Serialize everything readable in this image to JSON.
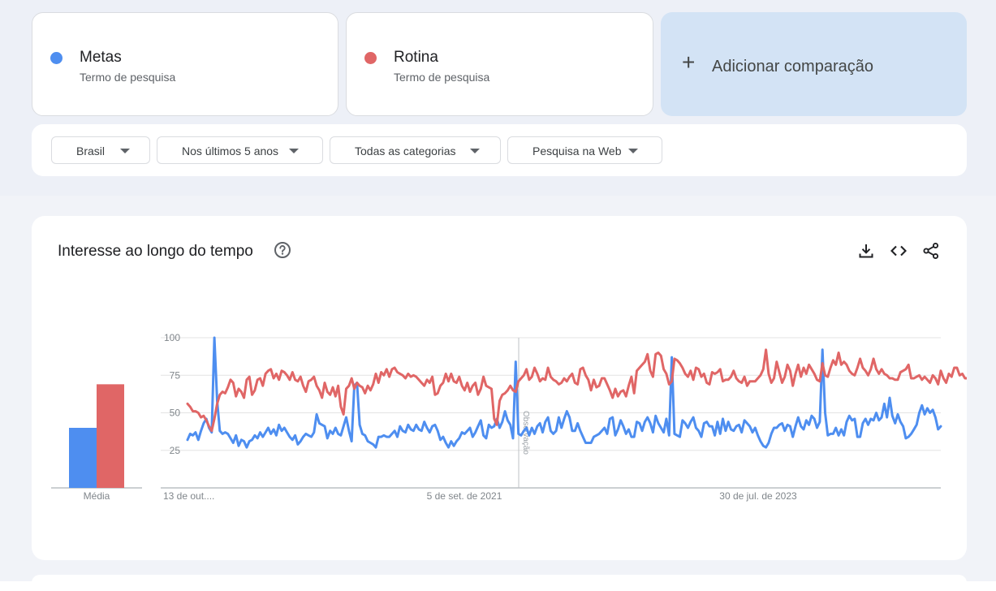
{
  "terms": [
    {
      "name": "Metas",
      "subtitle": "Termo de pesquisa",
      "color": "#4e8ef0"
    },
    {
      "name": "Rotina",
      "subtitle": "Termo de pesquisa",
      "color": "#e06666"
    }
  ],
  "add_comparison": {
    "label": "Adicionar comparação",
    "icon": "plus-icon"
  },
  "filters": [
    {
      "label": "Brasil",
      "icon": "chevron-down-icon"
    },
    {
      "label": "Nos últimos 5 anos",
      "icon": "chevron-down-icon"
    },
    {
      "label": "Todas as categorias",
      "icon": "chevron-down-icon"
    },
    {
      "label": "Pesquisa na Web",
      "icon": "chevron-down-icon"
    }
  ],
  "chart_section": {
    "title": "Interesse ao longo do tempo",
    "help_icon": "help-circle-icon",
    "tools": [
      "download-icon",
      "embed-code-icon",
      "share-icon"
    ]
  },
  "chart_data": {
    "type": "line",
    "average_bars": {
      "label": "Média",
      "values": [
        {
          "series": "Metas",
          "value": 40
        },
        {
          "series": "Rotina",
          "value": 69
        }
      ]
    },
    "y_ticks": [
      100,
      75,
      50,
      25
    ],
    "ylim": [
      0,
      100
    ],
    "x_tick_labels": [
      "13 de out....",
      "5 de set. de 2021",
      "30 de jul. de 2023"
    ],
    "annotation": "Observação",
    "grid": true,
    "series": [
      {
        "name": "Metas",
        "color": "#4e8ef0",
        "values": [
          32,
          36,
          35,
          37,
          32,
          38,
          43,
          46,
          40,
          37,
          100,
          58,
          38,
          36,
          37,
          36,
          33,
          30,
          35,
          28,
          32,
          31,
          27,
          31,
          32,
          35,
          33,
          37,
          34,
          37,
          40,
          36,
          39,
          35,
          42,
          38,
          40,
          37,
          34,
          32,
          35,
          29,
          31,
          34,
          36,
          35,
          34,
          37,
          49,
          43,
          42,
          41,
          33,
          38,
          36,
          40,
          36,
          35,
          41,
          47,
          38,
          31,
          68,
          70,
          42,
          36,
          35,
          31,
          30,
          29,
          27,
          34,
          34,
          35,
          34,
          34,
          36,
          38,
          34,
          41,
          38,
          37,
          42,
          39,
          38,
          42,
          39,
          38,
          44,
          40,
          37,
          41,
          42,
          38,
          32,
          34,
          30,
          27,
          31,
          28,
          31,
          33,
          37,
          36,
          38,
          40,
          34,
          37,
          41,
          45,
          35,
          33,
          42,
          40,
          41,
          46,
          40,
          44,
          51,
          45,
          42,
          33,
          84,
          36,
          35,
          38,
          40,
          35,
          40,
          36,
          41,
          43,
          37,
          44,
          47,
          38,
          36,
          38,
          47,
          40,
          46,
          51,
          47,
          38,
          38,
          43,
          38,
          34,
          30,
          30,
          30,
          34,
          35,
          36,
          38,
          40,
          36,
          46,
          47,
          35,
          39,
          45,
          41,
          36,
          39,
          34,
          34,
          44,
          43,
          38,
          44,
          47,
          43,
          37,
          48,
          43,
          40,
          37,
          46,
          35,
          87,
          36,
          35,
          34,
          45,
          43,
          40,
          44,
          47,
          40,
          38,
          34,
          43,
          44,
          41,
          41,
          35,
          44,
          36,
          46,
          38,
          44,
          39,
          38,
          41,
          42,
          37,
          45,
          43,
          41,
          37,
          40,
          35,
          31,
          28,
          27,
          30,
          36,
          40,
          40,
          42,
          43,
          38,
          42,
          41,
          34,
          41,
          47,
          41,
          39,
          45,
          42,
          48,
          46,
          40,
          44,
          92,
          50,
          35,
          36,
          36,
          40,
          35,
          39,
          35,
          44,
          48,
          45,
          46,
          34,
          34,
          43,
          46,
          42,
          46,
          45,
          50,
          45,
          47,
          56,
          47,
          60,
          48,
          43,
          49,
          44,
          41,
          33,
          34,
          36,
          39,
          42,
          50,
          55,
          49,
          53,
          50,
          52,
          47,
          39,
          41
        ]
      },
      {
        "name": "Rotina",
        "color": "#e06666",
        "values": [
          56,
          54,
          51,
          51,
          50,
          47,
          48,
          45,
          41,
          38,
          46,
          56,
          62,
          64,
          63,
          67,
          72,
          70,
          61,
          66,
          64,
          60,
          72,
          74,
          62,
          65,
          72,
          73,
          68,
          76,
          78,
          79,
          73,
          76,
          72,
          78,
          77,
          75,
          72,
          77,
          72,
          71,
          74,
          68,
          64,
          71,
          72,
          74,
          68,
          65,
          60,
          70,
          64,
          62,
          67,
          61,
          68,
          54,
          49,
          66,
          68,
          73,
          66,
          70,
          68,
          67,
          63,
          68,
          65,
          69,
          76,
          70,
          77,
          75,
          79,
          74,
          79,
          80,
          77,
          76,
          75,
          73,
          76,
          74,
          75,
          74,
          72,
          70,
          68,
          72,
          70,
          74,
          62,
          63,
          68,
          70,
          76,
          71,
          76,
          71,
          70,
          74,
          68,
          65,
          70,
          64,
          68,
          70,
          62,
          66,
          74,
          68,
          67,
          66,
          46,
          42,
          58,
          62,
          63,
          65,
          68,
          65,
          64,
          71,
          73,
          75,
          79,
          72,
          74,
          80,
          76,
          71,
          73,
          72,
          80,
          74,
          72,
          71,
          69,
          70,
          73,
          71,
          74,
          76,
          70,
          69,
          79,
          80,
          75,
          72,
          65,
          72,
          67,
          68,
          73,
          73,
          69,
          65,
          60,
          66,
          61,
          64,
          65,
          61,
          68,
          74,
          63,
          78,
          80,
          82,
          84,
          89,
          78,
          74,
          89,
          90,
          88,
          79,
          76,
          69,
          71,
          86,
          85,
          83,
          80,
          76,
          74,
          78,
          72,
          80,
          79,
          74,
          76,
          70,
          69,
          77,
          76,
          77,
          79,
          71,
          72,
          72,
          74,
          78,
          73,
          71,
          70,
          74,
          68,
          71,
          71,
          71,
          73,
          75,
          79,
          92,
          76,
          70,
          73,
          84,
          77,
          70,
          74,
          82,
          78,
          68,
          76,
          82,
          74,
          80,
          76,
          82,
          79,
          76,
          72,
          71,
          83,
          75,
          74,
          80,
          85,
          82,
          90,
          82,
          84,
          82,
          78,
          76,
          75,
          80,
          86,
          80,
          78,
          75,
          79,
          86,
          79,
          76,
          79,
          76,
          75,
          73,
          73,
          72,
          72,
          77,
          78,
          79,
          82,
          73,
          73,
          74,
          75,
          72,
          74,
          72,
          70,
          75,
          73,
          69,
          78,
          73,
          70,
          76,
          74,
          80,
          80,
          75,
          76,
          73,
          73,
          74,
          76,
          78,
          74,
          66,
          68
        ]
      }
    ]
  }
}
